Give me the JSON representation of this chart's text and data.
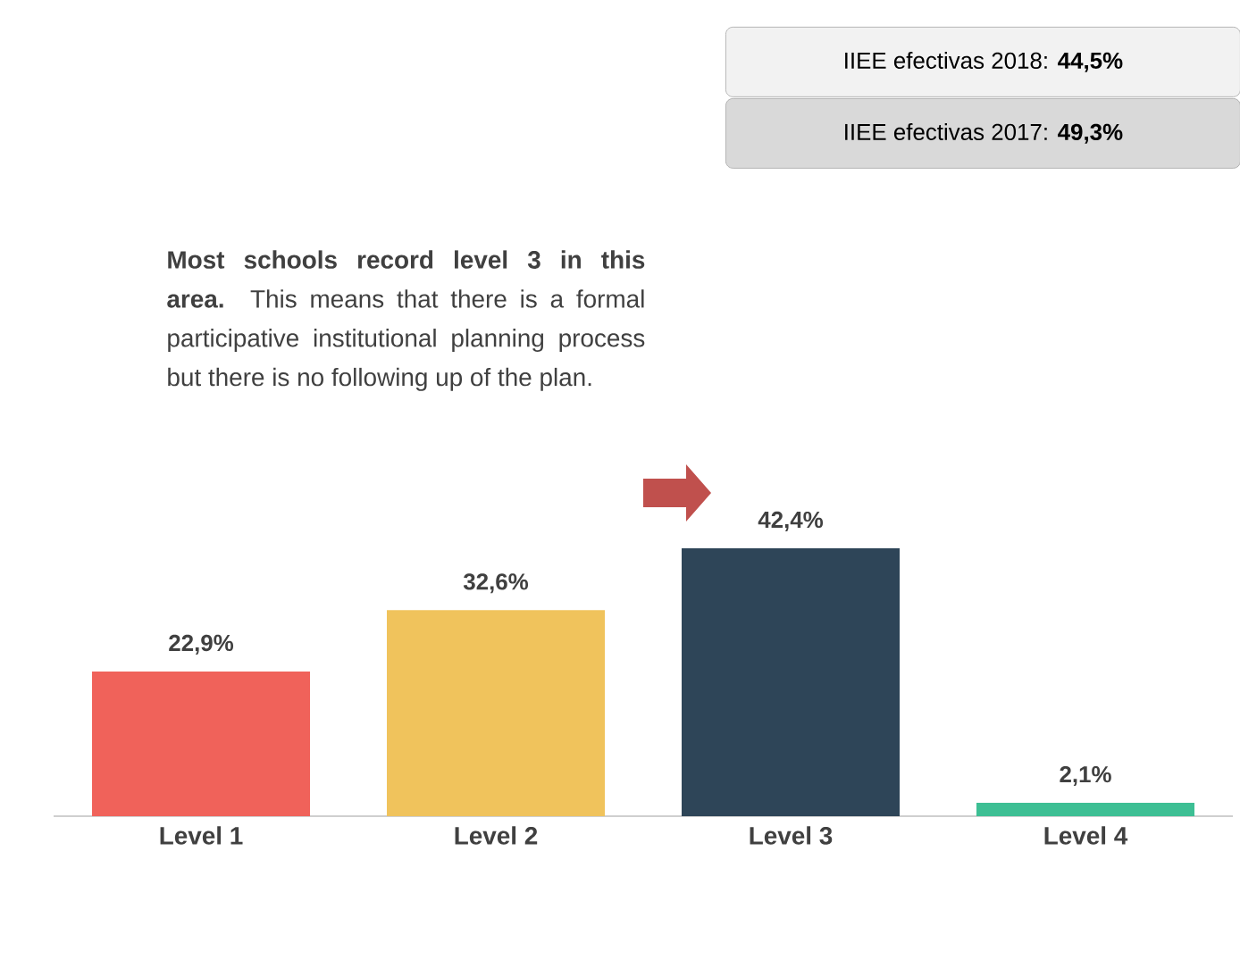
{
  "chart_data": {
    "type": "bar",
    "categories": [
      "Level 1",
      "Level 2",
      "Level 3",
      "Level 4"
    ],
    "values": [
      22.9,
      32.6,
      42.4,
      2.1
    ],
    "colors": [
      "#f0625a",
      "#f0c35c",
      "#2e4558",
      "#3dbf94"
    ],
    "value_labels": [
      "22,9%",
      "32,6%",
      "42,4%",
      "2,1%"
    ],
    "annotations": [
      "IIEE efectivas 2018: **44,5%**",
      "IIEE efectivas 2017: **49,3%**",
      "**Most schools record level 3 in this area.** This means that there is a formal participative institutional planning process but there is no following up of the plan."
    ]
  }
}
